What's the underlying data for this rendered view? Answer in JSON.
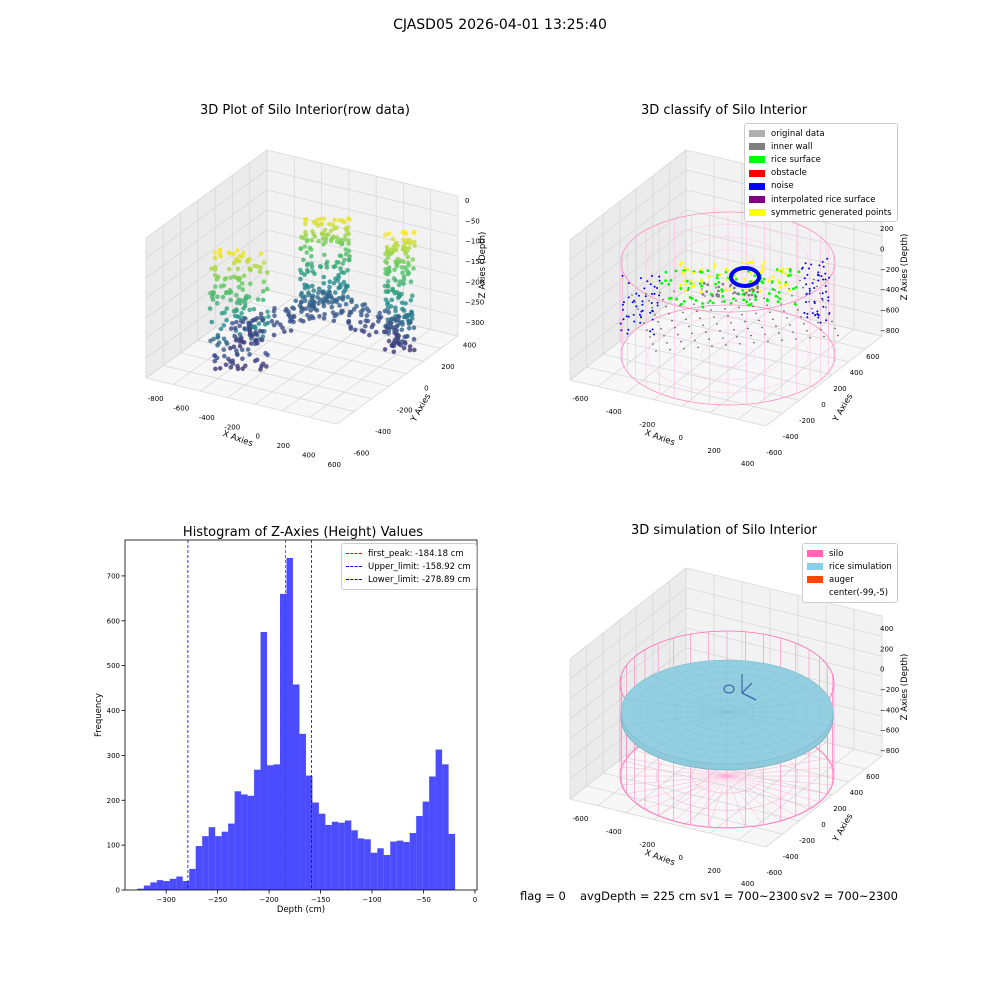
{
  "figure": {
    "suptitle": "CJASD05 2026-04-01 13:25:40"
  },
  "raw_plot": {
    "title": "3D Plot of Silo Interior(row data)",
    "xlabel": "X Axies",
    "ylabel": "Y Axies",
    "zlabel": "Z Axies (Depth)",
    "xticks": [
      "-800",
      "-600",
      "-400",
      "-200",
      "0",
      "200",
      "400",
      "600"
    ],
    "yticks": [
      "-600",
      "-400",
      "-200",
      "0",
      "200",
      "400"
    ],
    "zticks": [
      "0",
      "−50",
      "−100",
      "−150",
      "−200",
      "−250",
      "−300"
    ]
  },
  "classify_plot": {
    "title": "3D classify of Silo Interior",
    "xlabel": "X Axies",
    "ylabel": "Y Axies",
    "zlabel": "Z Axies (Depth)",
    "xticks": [
      "-600",
      "-400",
      "-200",
      "0",
      "200",
      "400"
    ],
    "yticks": [
      "-600",
      "-400",
      "-200",
      "0",
      "200",
      "400",
      "600"
    ],
    "zticks": [
      "200",
      "0",
      "−200",
      "−400",
      "−600",
      "−800"
    ],
    "legend": [
      {
        "label": "original data",
        "color": "#b0b0b0"
      },
      {
        "label": "inner wall",
        "color": "#808080"
      },
      {
        "label": "rice surface",
        "color": "#00ff00"
      },
      {
        "label": "obstacle",
        "color": "#ff0000"
      },
      {
        "label": "noise",
        "color": "#0000ff"
      },
      {
        "label": "interpolated rice surface",
        "color": "#800080"
      },
      {
        "label": "symmetric generated points",
        "color": "#ffff00"
      }
    ]
  },
  "sim_plot": {
    "title": "3D simulation of Silo Interior",
    "xlabel": "X Axies",
    "ylabel": "Y Axies",
    "zlabel": "Z Axies (Depth)",
    "xticks": [
      "-600",
      "-400",
      "-200",
      "0",
      "200",
      "400"
    ],
    "yticks": [
      "-600",
      "-400",
      "-200",
      "0",
      "200",
      "400",
      "600"
    ],
    "zticks": [
      "400",
      "200",
      "0",
      "−200",
      "−400",
      "−600",
      "−800"
    ],
    "legend": [
      {
        "label": "silo",
        "color": "#ff69b4"
      },
      {
        "label": "rice simulation",
        "color": "#87ceeb"
      },
      {
        "label": "auger",
        "color": "#ff4500"
      },
      {
        "label": "center(-99,-5)",
        "color": "#ffffff"
      }
    ]
  },
  "footer": {
    "flag": "flag = 0",
    "avg": "avgDepth = 225 cm",
    "sv1": "sv1 = 700~2300",
    "sv2": "sv2 = 700~2300"
  },
  "chart_data": [
    {
      "type": "bar",
      "title": "Histogram of Z-Axies (Height) Values",
      "xlabel": "Depth (cm)",
      "ylabel": "Frequency",
      "bar_color": "#0000ff",
      "xlim": [
        -340,
        2
      ],
      "ylim": [
        0,
        780
      ],
      "xticks": [
        -300,
        -250,
        -200,
        -150,
        -100,
        -50,
        0
      ],
      "yticks": [
        0,
        100,
        200,
        300,
        400,
        500,
        600,
        700
      ],
      "bin_start": -328,
      "bin_width": 6.3,
      "values": [
        3,
        10,
        17,
        22,
        20,
        25,
        30,
        20,
        47,
        98,
        120,
        140,
        120,
        130,
        148,
        220,
        213,
        210,
        268,
        575,
        278,
        280,
        660,
        740,
        458,
        348,
        255,
        195,
        170,
        145,
        152,
        150,
        155,
        133,
        115,
        113,
        83,
        93,
        78,
        108,
        110,
        107,
        127,
        165,
        197,
        253,
        313,
        280,
        125
      ],
      "vlines": [
        {
          "value": -184.18,
          "color": "#ff0000",
          "label": "first_peak: -184.18 cm"
        },
        {
          "value": -158.92,
          "color": "#0000ff",
          "label": "Upper_limit: -158.92 cm"
        },
        {
          "value": -278.89,
          "color": "#0000ff",
          "label": "Lower_limit: -278.89 cm"
        }
      ],
      "legend_position": "top-right"
    }
  ]
}
